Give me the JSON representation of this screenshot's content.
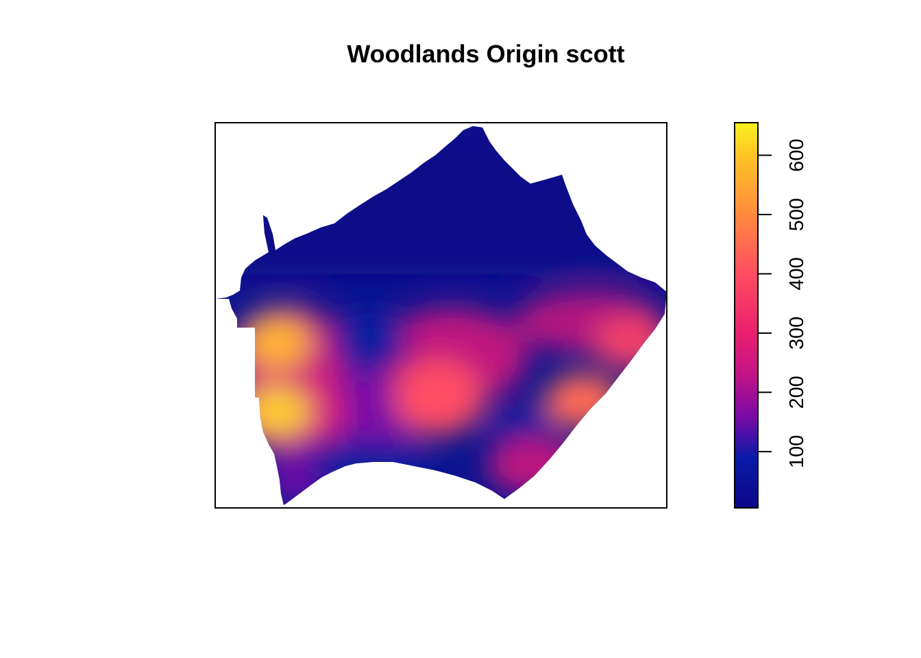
{
  "chart_data": {
    "type": "heatmap",
    "title": "Woodlands Origin scott",
    "xlabel": "",
    "ylabel": "",
    "axes_shown": false,
    "color_scale": {
      "min": 5,
      "max": 655,
      "ticks": [
        100,
        200,
        300,
        400,
        500,
        600
      ],
      "tick_labels": [
        "100",
        "200",
        "300",
        "400",
        "500",
        "600"
      ],
      "stops": [
        {
          "value": 5,
          "color": "#0d0887"
        },
        {
          "value": 90,
          "color": "#0a1aa8"
        },
        {
          "value": 160,
          "color": "#7b0aa5"
        },
        {
          "value": 230,
          "color": "#c21487"
        },
        {
          "value": 300,
          "color": "#e8206f"
        },
        {
          "value": 400,
          "color": "#ff4d62"
        },
        {
          "value": 500,
          "color": "#ff8a3d"
        },
        {
          "value": 600,
          "color": "#fec425"
        },
        {
          "value": 655,
          "color": "#f9f221"
        }
      ]
    },
    "hotspots": [
      {
        "label": "west-upper",
        "value": 610
      },
      {
        "label": "west-lower",
        "value": 655
      },
      {
        "label": "center",
        "value": 450
      },
      {
        "label": "east",
        "value": 460
      },
      {
        "label": "east-upper-edge",
        "value": 420
      }
    ],
    "legend_position": "right"
  },
  "colors": {
    "background": "#ffffff",
    "frame": "#000000",
    "low": "#0d0887",
    "high": "#f9f221"
  }
}
